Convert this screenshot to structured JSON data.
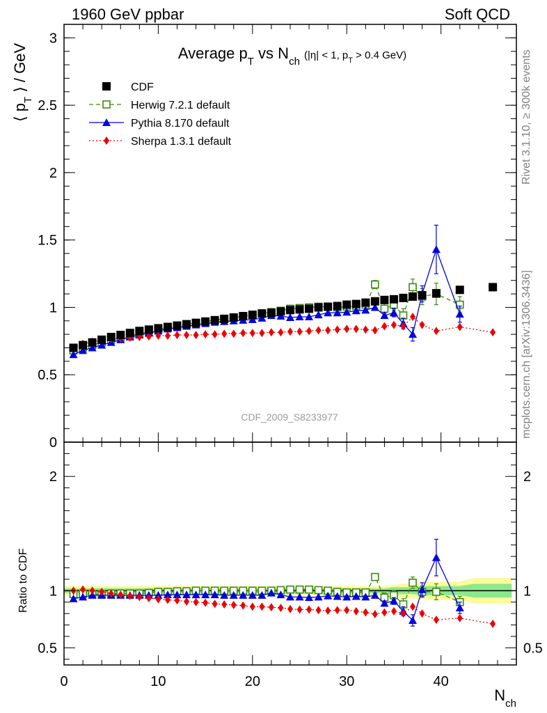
{
  "header": {
    "left": "1960 GeV ppbar",
    "right": "Soft QCD"
  },
  "side_labels": {
    "rivet": "Rivet 3.1.10, ≥ 300k events",
    "mcplots": "mcplots.cern.ch [arXiv:1306.3436]"
  },
  "watermark": "CDF_2009_S8233977",
  "chart_data": [
    {
      "type": "scatter",
      "panel": "main",
      "title": "Average p_T vs N_ch (|η| < 1, p_T > 0.4 GeV)",
      "ylabel": "⟨ p_T ⟩ / GeV",
      "xlabel": "N_ch",
      "xlim": [
        0,
        48
      ],
      "ylim": [
        0,
        3.1
      ],
      "yticks": [
        0,
        0.5,
        1,
        1.5,
        2,
        2.5,
        3
      ],
      "yticklabels": [
        "0",
        "0.5",
        "1",
        "1.5",
        "2",
        "2.5",
        "3"
      ],
      "xticks": [
        0,
        10,
        20,
        30,
        40
      ],
      "xticklabels": [
        "0",
        "10",
        "20",
        "30",
        "40"
      ],
      "legend": "top-left",
      "series": [
        {
          "name": "CDF",
          "color": "#000000",
          "marker": "filled-square",
          "x": [
            1,
            2,
            3,
            4,
            5,
            6,
            7,
            8,
            9,
            10,
            11,
            12,
            13,
            14,
            15,
            16,
            17,
            18,
            19,
            20,
            21,
            22,
            23,
            24,
            25,
            26,
            27,
            28,
            29,
            30,
            31,
            32,
            33,
            34,
            35,
            36,
            37,
            38,
            39.5,
            42,
            45.5
          ],
          "y": [
            0.7,
            0.72,
            0.74,
            0.76,
            0.78,
            0.795,
            0.81,
            0.825,
            0.835,
            0.845,
            0.855,
            0.865,
            0.875,
            0.885,
            0.895,
            0.905,
            0.915,
            0.925,
            0.935,
            0.945,
            0.955,
            0.96,
            0.97,
            0.98,
            0.985,
            0.99,
            1.0,
            1.005,
            1.01,
            1.02,
            1.025,
            1.035,
            1.045,
            1.055,
            1.06,
            1.07,
            1.08,
            1.09,
            1.105,
            1.13,
            1.15
          ]
        },
        {
          "name": "Herwig 7.2.1 default",
          "color": "#3a8a10",
          "marker": "open-square",
          "line": "dashed",
          "x": [
            1,
            2,
            3,
            4,
            5,
            6,
            7,
            8,
            9,
            10,
            11,
            12,
            13,
            14,
            15,
            16,
            17,
            18,
            19,
            20,
            21,
            22,
            23,
            24,
            25,
            26,
            27,
            28,
            29,
            30,
            31,
            32,
            33,
            34,
            35,
            36,
            37,
            38,
            39.5,
            42
          ],
          "y": [
            0.68,
            0.7,
            0.72,
            0.74,
            0.76,
            0.775,
            0.79,
            0.805,
            0.82,
            0.835,
            0.85,
            0.86,
            0.875,
            0.885,
            0.895,
            0.905,
            0.915,
            0.925,
            0.935,
            0.945,
            0.955,
            0.965,
            0.975,
            0.99,
            0.995,
            1.0,
            1.005,
            1.005,
            1.0,
            1.005,
            1.01,
            1.02,
            1.17,
            0.99,
            1.02,
            0.94,
            1.15,
            1.08,
            1.1,
            1.02
          ],
          "yerr": [
            0,
            0,
            0,
            0,
            0,
            0,
            0,
            0,
            0,
            0,
            0,
            0,
            0,
            0,
            0,
            0,
            0,
            0,
            0,
            0,
            0,
            0,
            0,
            0,
            0,
            0,
            0,
            0,
            0,
            0,
            0,
            0.02,
            0.03,
            0.04,
            0.04,
            0.05,
            0.06,
            0.06,
            0.08,
            0.06
          ]
        },
        {
          "name": "Pythia 8.170 default",
          "color": "#0000e0",
          "marker": "filled-triangle",
          "line": "solid",
          "x": [
            1,
            2,
            3,
            4,
            5,
            6,
            7,
            8,
            9,
            10,
            11,
            12,
            13,
            14,
            15,
            16,
            17,
            18,
            19,
            20,
            21,
            22,
            23,
            24,
            25,
            26,
            27,
            28,
            29,
            30,
            31,
            32,
            33,
            34,
            35,
            36,
            37,
            38,
            39.5,
            42
          ],
          "y": [
            0.65,
            0.68,
            0.7,
            0.72,
            0.74,
            0.76,
            0.78,
            0.795,
            0.81,
            0.825,
            0.84,
            0.85,
            0.86,
            0.87,
            0.88,
            0.89,
            0.895,
            0.9,
            0.905,
            0.91,
            0.92,
            0.94,
            0.935,
            0.925,
            0.93,
            0.93,
            0.945,
            0.96,
            0.96,
            0.965,
            0.975,
            0.98,
            1.0,
            0.94,
            0.96,
            0.88,
            0.8,
            1.1,
            1.43,
            0.95
          ],
          "yerr": [
            0,
            0,
            0,
            0,
            0,
            0,
            0,
            0,
            0,
            0,
            0,
            0,
            0,
            0,
            0,
            0,
            0,
            0,
            0,
            0,
            0,
            0,
            0,
            0,
            0,
            0,
            0,
            0,
            0,
            0,
            0,
            0,
            0.02,
            0.02,
            0.03,
            0.04,
            0.05,
            0.06,
            0.18,
            0.06
          ]
        },
        {
          "name": "Sherpa 1.3.1 default",
          "color": "#ee0000",
          "marker": "filled-diamond",
          "line": "dotted",
          "x": [
            1,
            2,
            3,
            4,
            5,
            6,
            7,
            8,
            9,
            10,
            11,
            12,
            13,
            14,
            15,
            16,
            17,
            18,
            19,
            20,
            21,
            22,
            23,
            24,
            25,
            26,
            27,
            28,
            29,
            30,
            31,
            32,
            33,
            34,
            35,
            36,
            37,
            38,
            39.5,
            42,
            45.5
          ],
          "y": [
            0.7,
            0.73,
            0.745,
            0.755,
            0.765,
            0.77,
            0.775,
            0.78,
            0.785,
            0.79,
            0.79,
            0.795,
            0.795,
            0.795,
            0.8,
            0.8,
            0.805,
            0.805,
            0.81,
            0.81,
            0.81,
            0.815,
            0.815,
            0.82,
            0.82,
            0.825,
            0.83,
            0.83,
            0.835,
            0.84,
            0.84,
            0.835,
            0.83,
            0.86,
            0.87,
            0.86,
            0.93,
            0.87,
            0.825,
            0.855,
            0.815
          ]
        }
      ]
    },
    {
      "type": "scatter",
      "panel": "ratio",
      "ylabel": "Ratio to CDF",
      "xlabel": "N_ch",
      "xlim": [
        0,
        48
      ],
      "ylim": [
        0.35,
        2.3
      ],
      "yticks": [
        0.5,
        1,
        2
      ],
      "yticklabels": [
        "0.5",
        "1",
        "2"
      ],
      "bands": [
        {
          "x": [
            0,
            2,
            4,
            6,
            8,
            10,
            12,
            14,
            16,
            18,
            20,
            22,
            24,
            26,
            28,
            30,
            32,
            33,
            34,
            35,
            36,
            37,
            38,
            39,
            40,
            41,
            42,
            43.5,
            47.5
          ],
          "inner": [
            0.02,
            0.02,
            0.02,
            0.02,
            0.02,
            0.02,
            0.02,
            0.02,
            0.02,
            0.02,
            0.02,
            0.02,
            0.02,
            0.02,
            0.02,
            0.02,
            0.02,
            0.02,
            0.02,
            0.03,
            0.03,
            0.03,
            0.04,
            0.04,
            0.04,
            0.04,
            0.04,
            0.06,
            0.06
          ],
          "outer": [
            0.04,
            0.04,
            0.04,
            0.04,
            0.04,
            0.04,
            0.04,
            0.04,
            0.04,
            0.04,
            0.04,
            0.04,
            0.04,
            0.04,
            0.04,
            0.04,
            0.04,
            0.04,
            0.04,
            0.05,
            0.06,
            0.07,
            0.07,
            0.08,
            0.08,
            0.08,
            0.08,
            0.11,
            0.11
          ]
        }
      ],
      "series": [
        {
          "name": "Herwig 7.2.1 default",
          "color": "#3a8a10",
          "marker": "open-square",
          "line": "dashed",
          "x": [
            1,
            2,
            3,
            4,
            5,
            6,
            7,
            8,
            9,
            10,
            11,
            12,
            13,
            14,
            15,
            16,
            17,
            18,
            19,
            20,
            21,
            22,
            23,
            24,
            25,
            26,
            27,
            28,
            29,
            30,
            31,
            32,
            33,
            34,
            35,
            36,
            37,
            38,
            39.5,
            42
          ],
          "y": [
            0.97,
            0.97,
            0.97,
            0.97,
            0.975,
            0.975,
            0.975,
            0.975,
            0.98,
            0.99,
            0.99,
            0.995,
            0.995,
            1.0,
            1.0,
            1.0,
            1.0,
            1.0,
            1.0,
            1.0,
            1.0,
            1.0,
            1.005,
            1.01,
            1.01,
            1.01,
            1.005,
            1.0,
            0.99,
            0.985,
            0.985,
            0.985,
            1.12,
            0.94,
            0.96,
            0.88,
            1.07,
            0.99,
            0.99,
            0.9
          ],
          "yerr": [
            0,
            0,
            0,
            0,
            0,
            0,
            0,
            0,
            0,
            0,
            0,
            0,
            0,
            0,
            0,
            0,
            0,
            0,
            0,
            0,
            0,
            0,
            0,
            0,
            0,
            0,
            0,
            0,
            0,
            0,
            0,
            0.02,
            0.03,
            0.04,
            0.04,
            0.05,
            0.05,
            0.05,
            0.07,
            0.05
          ]
        },
        {
          "name": "Pythia 8.170 default",
          "color": "#0000e0",
          "marker": "filled-triangle",
          "line": "solid",
          "x": [
            1,
            2,
            3,
            4,
            5,
            6,
            7,
            8,
            9,
            10,
            11,
            12,
            13,
            14,
            15,
            16,
            17,
            18,
            19,
            20,
            21,
            22,
            23,
            24,
            25,
            26,
            27,
            28,
            29,
            30,
            31,
            32,
            33,
            34,
            35,
            36,
            37,
            38,
            39.5,
            42
          ],
          "y": [
            0.93,
            0.945,
            0.96,
            0.96,
            0.96,
            0.96,
            0.96,
            0.96,
            0.96,
            0.96,
            0.965,
            0.965,
            0.965,
            0.965,
            0.965,
            0.965,
            0.96,
            0.96,
            0.96,
            0.96,
            0.96,
            0.98,
            0.965,
            0.945,
            0.945,
            0.94,
            0.945,
            0.955,
            0.95,
            0.945,
            0.95,
            0.945,
            0.96,
            0.89,
            0.91,
            0.82,
            0.74,
            1.01,
            1.29,
            0.85
          ],
          "yerr": [
            0,
            0,
            0,
            0,
            0,
            0,
            0,
            0,
            0,
            0,
            0,
            0,
            0,
            0,
            0,
            0,
            0,
            0,
            0,
            0,
            0,
            0,
            0,
            0,
            0,
            0,
            0,
            0,
            0,
            0,
            0,
            0,
            0.02,
            0.02,
            0.03,
            0.04,
            0.05,
            0.06,
            0.16,
            0.05
          ]
        },
        {
          "name": "Sherpa 1.3.1 default",
          "color": "#ee0000",
          "marker": "filled-diamond",
          "line": "dotted",
          "x": [
            1,
            2,
            3,
            4,
            5,
            6,
            7,
            8,
            9,
            10,
            11,
            12,
            13,
            14,
            15,
            16,
            17,
            18,
            19,
            20,
            21,
            22,
            23,
            24,
            25,
            26,
            27,
            28,
            29,
            30,
            31,
            32,
            33,
            34,
            35,
            36,
            37,
            38,
            39.5,
            42,
            45.5
          ],
          "y": [
            1.0,
            1.01,
            1.0,
            0.99,
            0.975,
            0.965,
            0.955,
            0.945,
            0.935,
            0.925,
            0.92,
            0.915,
            0.905,
            0.9,
            0.895,
            0.885,
            0.88,
            0.875,
            0.87,
            0.86,
            0.86,
            0.855,
            0.85,
            0.84,
            0.835,
            0.835,
            0.83,
            0.825,
            0.83,
            0.83,
            0.82,
            0.81,
            0.795,
            0.81,
            0.82,
            0.8,
            0.86,
            0.8,
            0.745,
            0.76,
            0.71
          ]
        }
      ]
    }
  ]
}
